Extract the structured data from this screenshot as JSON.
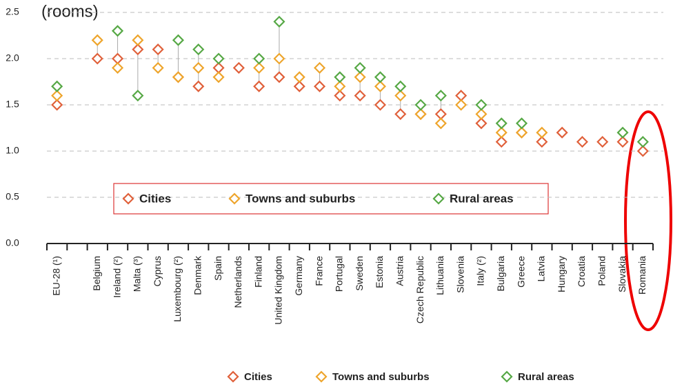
{
  "chart_data": {
    "type": "scatter",
    "y_label": "(rooms)",
    "categories": [
      "EU-28 (¹)",
      null,
      "Belgium",
      "Ireland (²)",
      "Malta (³)",
      "Cyprus",
      "Luxembourg (²)",
      "Denmark",
      "Spain",
      "Netherlands",
      "Finland",
      "United Kingdom",
      "Germany",
      "France",
      "Portugal",
      "Sweden",
      "Estonia",
      "Austria",
      "Czech Republic",
      "Lithuania",
      "Slovenia",
      "Italy (²)",
      "Bulgaria",
      "Greece",
      "Latvia",
      "Hungary",
      "Croatia",
      "Poland",
      "Slovakia",
      "Romania"
    ],
    "series": [
      {
        "name": "Cities",
        "color": "#e0603a",
        "values": [
          1.5,
          null,
          2.0,
          2.0,
          2.1,
          2.1,
          1.8,
          1.7,
          1.9,
          1.9,
          1.7,
          1.8,
          1.7,
          1.7,
          1.6,
          1.6,
          1.5,
          1.4,
          1.4,
          1.4,
          1.6,
          1.3,
          1.1,
          1.2,
          1.1,
          1.2,
          1.1,
          1.1,
          1.1,
          1.0
        ]
      },
      {
        "name": "Towns and suburbs",
        "color": "#eea52c",
        "values": [
          1.6,
          null,
          2.2,
          1.9,
          2.2,
          1.9,
          1.8,
          1.9,
          1.8,
          null,
          1.9,
          2.0,
          1.8,
          1.9,
          1.7,
          1.8,
          1.7,
          1.6,
          1.4,
          1.3,
          1.5,
          1.4,
          1.2,
          1.2,
          1.2,
          null,
          null,
          null,
          null,
          null
        ]
      },
      {
        "name": "Rural areas",
        "color": "#56a845",
        "values": [
          1.7,
          null,
          null,
          2.3,
          1.6,
          null,
          2.2,
          2.1,
          2.0,
          null,
          2.0,
          2.4,
          null,
          null,
          1.8,
          1.9,
          1.8,
          1.7,
          1.5,
          1.6,
          null,
          1.5,
          1.3,
          1.3,
          null,
          null,
          null,
          null,
          1.2,
          1.1
        ]
      }
    ],
    "ylim": [
      0,
      2.5
    ],
    "yticks": [
      {
        "value": 0,
        "label": "0.0"
      },
      0.5,
      {
        "value": 1,
        "label": "1.0"
      },
      1.5,
      {
        "value": 2,
        "label": "2.0"
      },
      2.5
    ],
    "grid": true
  }
}
